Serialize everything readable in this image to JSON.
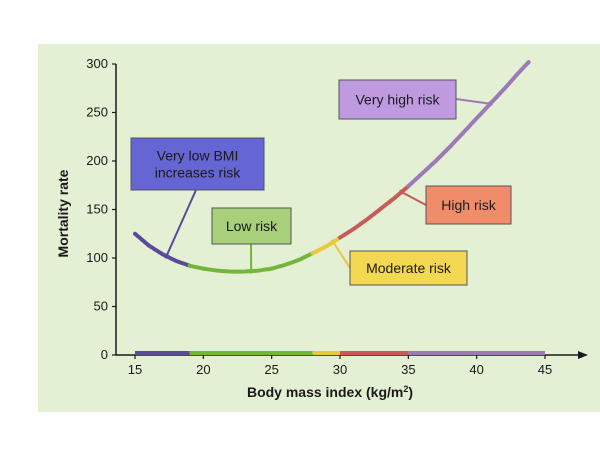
{
  "chart_data": {
    "type": "line",
    "xlabel": "Body mass index (kg/m",
    "xlabel_sup": "2",
    "xlabel_tail": ")",
    "ylabel": "Mortality rate",
    "xlim": [
      15,
      45
    ],
    "ylim": [
      0,
      300
    ],
    "x_ticks": [
      15,
      20,
      25,
      30,
      35,
      40,
      45
    ],
    "y_ticks": [
      0,
      50,
      100,
      150,
      200,
      250,
      300
    ],
    "grid": false,
    "curve": [
      {
        "x": 15,
        "y": 125
      },
      {
        "x": 16,
        "y": 113
      },
      {
        "x": 17,
        "y": 104
      },
      {
        "x": 18,
        "y": 97
      },
      {
        "x": 19,
        "y": 92
      },
      {
        "x": 20,
        "y": 89
      },
      {
        "x": 21,
        "y": 87
      },
      {
        "x": 22,
        "y": 86
      },
      {
        "x": 23,
        "y": 86
      },
      {
        "x": 24,
        "y": 87
      },
      {
        "x": 25,
        "y": 89
      },
      {
        "x": 26,
        "y": 93
      },
      {
        "x": 27,
        "y": 98
      },
      {
        "x": 28,
        "y": 105
      },
      {
        "x": 29,
        "y": 112
      },
      {
        "x": 30,
        "y": 121
      },
      {
        "x": 31,
        "y": 130
      },
      {
        "x": 32,
        "y": 140
      },
      {
        "x": 33,
        "y": 151
      },
      {
        "x": 34,
        "y": 162
      },
      {
        "x": 35,
        "y": 174
      },
      {
        "x": 36,
        "y": 187
      },
      {
        "x": 37,
        "y": 200
      },
      {
        "x": 38,
        "y": 214
      },
      {
        "x": 39,
        "y": 229
      },
      {
        "x": 40,
        "y": 244
      },
      {
        "x": 41,
        "y": 259
      },
      {
        "x": 42,
        "y": 274
      },
      {
        "x": 43,
        "y": 290
      },
      {
        "x": 43.8,
        "y": 302
      }
    ],
    "risk_zones": [
      {
        "label": "Very low BMI\nincreases risk",
        "from": 15,
        "to": 19,
        "color": "#5b4a9c",
        "fill": "#6565d4",
        "anchor_x": 17.3
      },
      {
        "label": "Low risk",
        "from": 19,
        "to": 28,
        "color": "#74b63c",
        "fill": "#a8cf7a",
        "anchor_x": 23.5
      },
      {
        "label": "Moderate risk",
        "from": 28,
        "to": 30,
        "color": "#e8c83c",
        "fill": "#f4d752",
        "anchor_x": 29.5
      },
      {
        "label": "High risk",
        "from": 30,
        "to": 35,
        "color": "#c85a5a",
        "fill": "#f08c6a",
        "anchor_x": 34.5
      },
      {
        "label": "Very high risk",
        "from": 35,
        "to": 45,
        "color": "#9c7ab8",
        "fill": "#c09ae0",
        "anchor_x": 41
      }
    ]
  }
}
